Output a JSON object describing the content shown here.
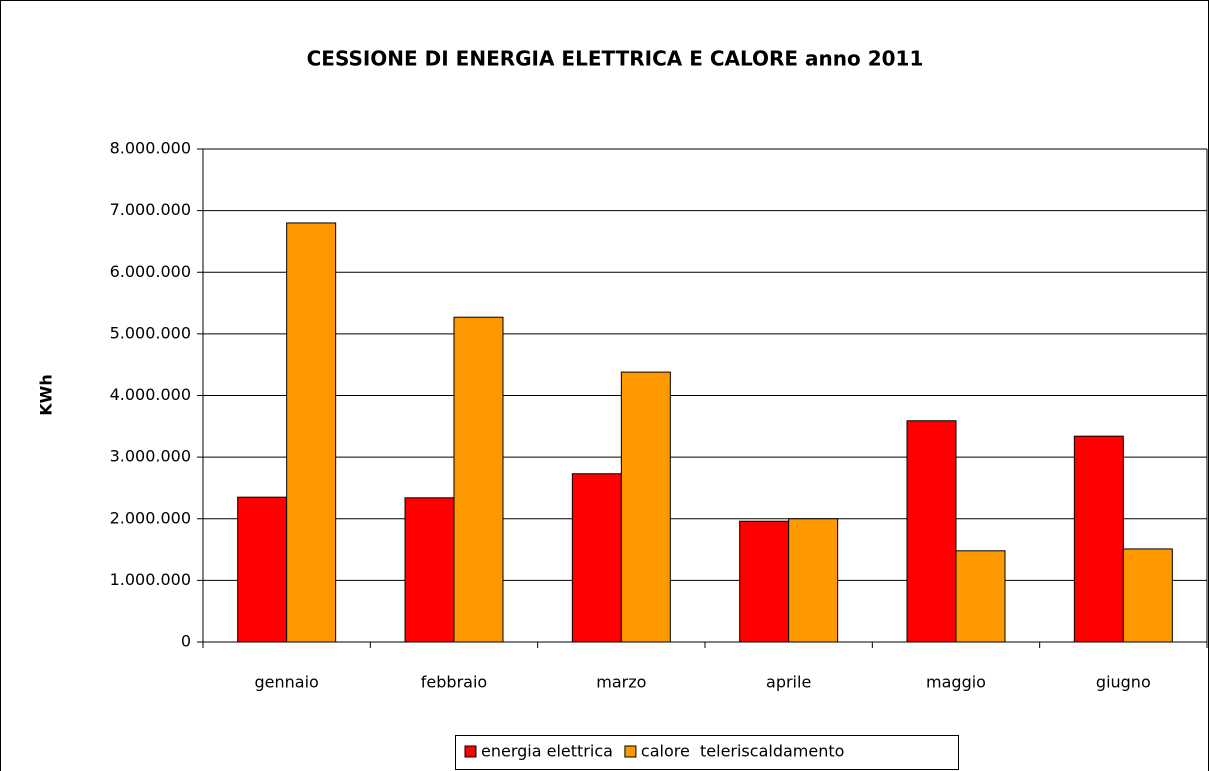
{
  "chart_data": {
    "type": "bar",
    "title": "CESSIONE DI ENERGIA ELETTRICA E CALORE anno 2011",
    "y_label": "KWh",
    "categories": [
      "gennaio",
      "febbraio",
      "marzo",
      "aprile",
      "maggio",
      "giugno"
    ],
    "series": [
      {
        "name": "energia elettrica",
        "color": "#ff0000",
        "values": [
          2350000,
          2340000,
          2730000,
          1960000,
          3590000,
          3340000
        ]
      },
      {
        "name": "calore  teleriscaldamento",
        "color": "#ff9900",
        "values": [
          6800000,
          5270000,
          4380000,
          2000000,
          1480000,
          1510000
        ]
      }
    ],
    "ylim": [
      0,
      8000000
    ],
    "yticks": [
      0,
      {
        "value": 1000000,
        "label": "1.000.000"
      },
      {
        "value": 2000000,
        "label": "2.000.000"
      },
      {
        "value": 3000000,
        "label": "3.000.000"
      },
      {
        "value": 4000000,
        "label": "4.000.000"
      },
      {
        "value": 5000000,
        "label": "5.000.000"
      },
      {
        "value": 6000000,
        "label": "6.000.000"
      },
      {
        "value": 7000000,
        "label": "7.000.000"
      },
      {
        "value": 8000000,
        "label": "8.000.000"
      }
    ],
    "grid": true,
    "legend": "bottom"
  }
}
